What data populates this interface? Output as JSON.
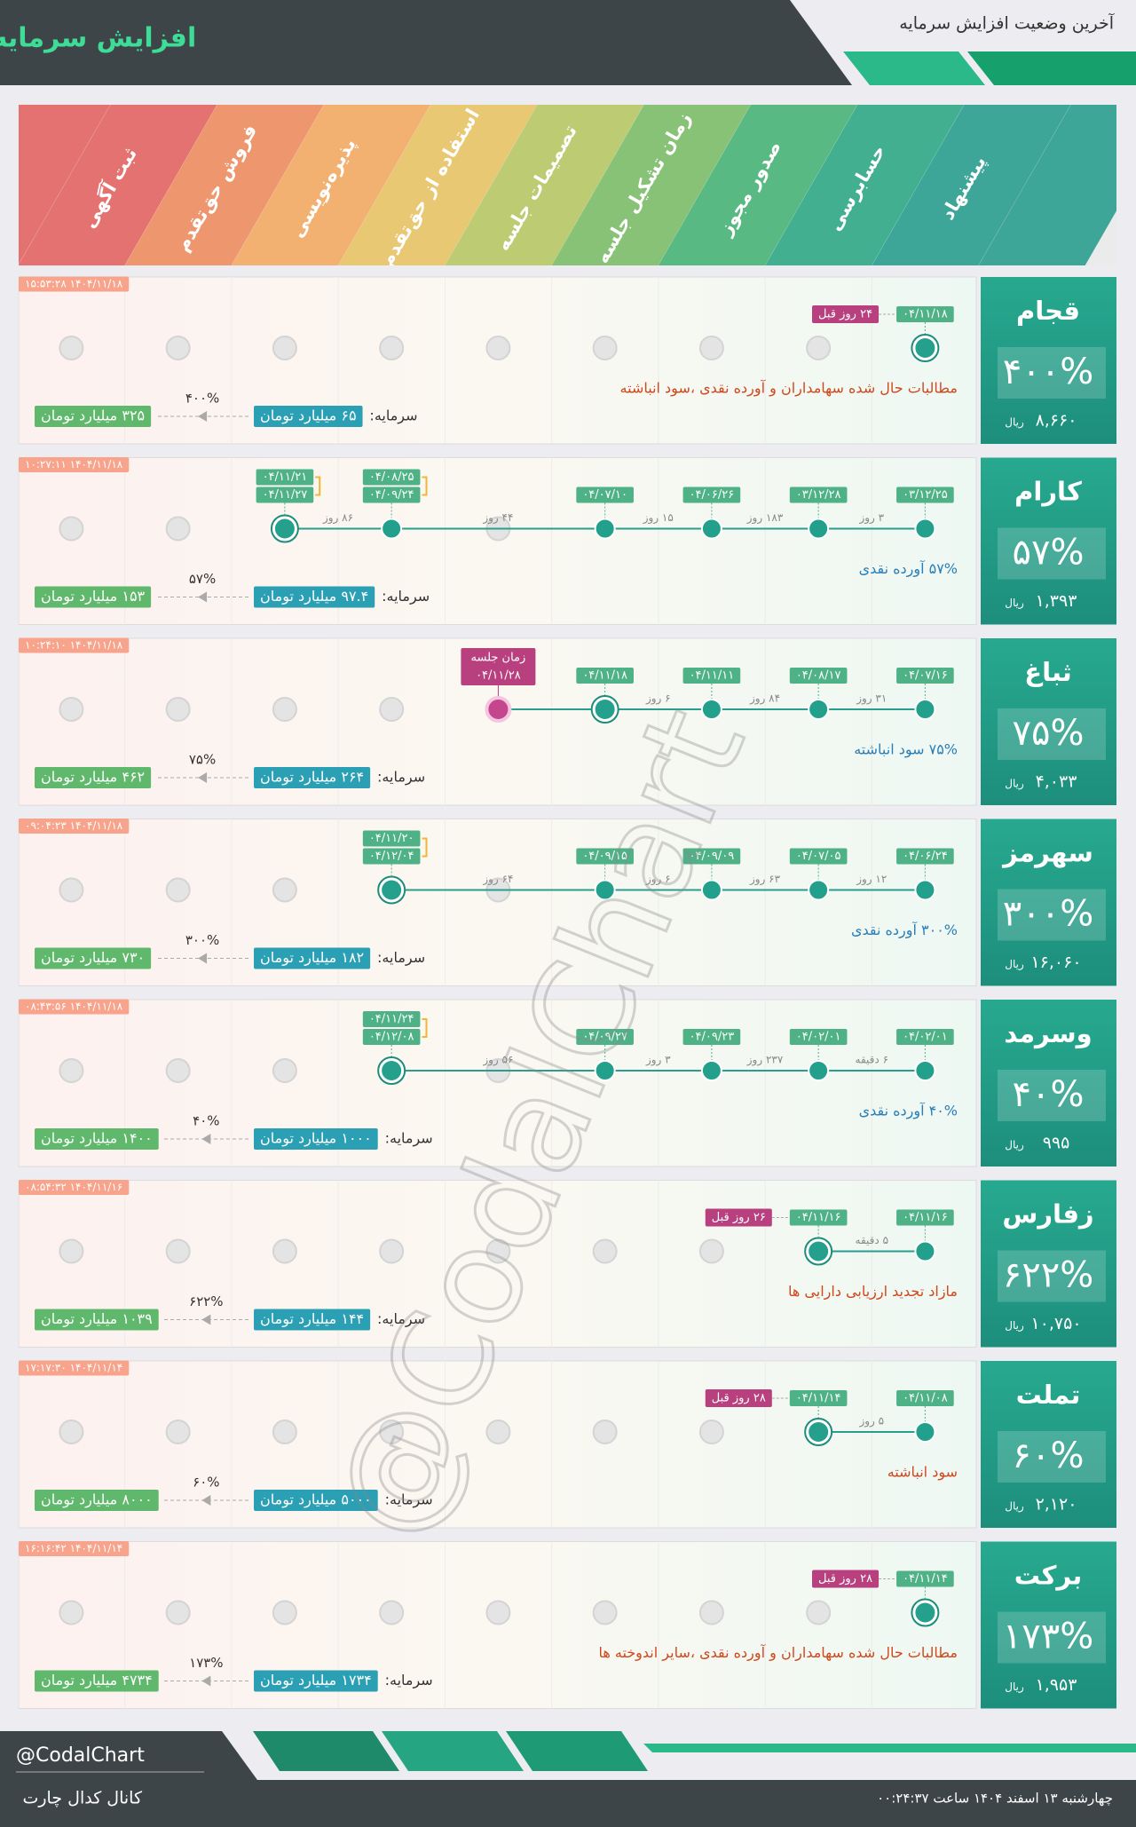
{
  "header": {
    "title": "افزایش سرمایه",
    "subtitle": "آخرین وضعیت افزایش سرمایه"
  },
  "stages": [
    "پیشنهاد",
    "حسابرسی",
    "صدور مجوز",
    "زمان تشکیل جلسه",
    "تصمیمات جلسه",
    "استفاده از حق‌تقدم",
    "پذیره‌نویسی",
    "فروش حق‌تقدم",
    "ثبت آگهی"
  ],
  "rows": [
    {
      "name": "قجام",
      "percent": "۴۰۰%",
      "price": "۸,۶۶۰",
      "unit": "ریال",
      "time": "۱۴۰۴/۱۱/۱۸ ۱۵:۵۳:۲۸",
      "desc": "مطالبات حال شده سهامداران و آورده نقدی ،سود انباشته",
      "desc_color": "red",
      "capital_label": "سرمایه:",
      "capital": "۶۵ میلیارد تومان",
      "increase": "۴۰۰%",
      "new_capital": "۳۲۵ میلیارد تومان",
      "nodes": [
        {
          "stage": 0,
          "dates": [
            "۰۴/۱۱/۱۸"
          ],
          "state": "active",
          "ago": "۲۴ روز قبل"
        }
      ]
    },
    {
      "name": "کارام",
      "percent": "۵۷%",
      "price": "۱,۳۹۳",
      "unit": "ریال",
      "time": "۱۴۰۴/۱۱/۱۸ ۱۰:۲۷:۱۱",
      "desc": "۵۷% آورده نقدی",
      "desc_color": "blue",
      "capital_label": "سرمایه:",
      "capital": "۹۷.۴ میلیارد تومان",
      "increase": "۵۷%",
      "new_capital": "۱۵۳ میلیارد تومان",
      "nodes": [
        {
          "stage": 0,
          "dates": [
            "۰۳/۱۲/۲۵"
          ],
          "state": "done"
        },
        {
          "stage": 1,
          "dates": [
            "۰۳/۱۲/۲۸"
          ],
          "state": "done",
          "gap": "۳ روز"
        },
        {
          "stage": 2,
          "dates": [
            "۰۴/۰۶/۲۶"
          ],
          "state": "done",
          "gap": "۱۸۳ روز"
        },
        {
          "stage": 3,
          "dates": [
            "۰۴/۰۷/۱۰"
          ],
          "state": "done",
          "gap": "۱۵ روز"
        },
        {
          "stage": 5,
          "dates": [
            "۰۴/۰۸/۲۵",
            "۰۴/۰۹/۲۴"
          ],
          "state": "done",
          "gap": "۴۴ روز"
        },
        {
          "stage": 6,
          "dates": [
            "۰۴/۱۱/۲۱",
            "۰۴/۱۱/۲۷"
          ],
          "state": "active",
          "gap": "۸۶ روز"
        }
      ]
    },
    {
      "name": "ثباغ",
      "percent": "۷۵%",
      "price": "۴,۰۳۳",
      "unit": "ریال",
      "time": "۱۴۰۴/۱۱/۱۸ ۱۰:۲۴:۱۰",
      "desc": "۷۵% سود انباشته",
      "desc_color": "blue",
      "capital_label": "سرمایه:",
      "capital": "۲۶۴ میلیارد تومان",
      "increase": "۷۵%",
      "new_capital": "۴۶۲ میلیارد تومان",
      "nodes": [
        {
          "stage": 0,
          "dates": [
            "۰۴/۰۷/۱۶"
          ],
          "state": "done"
        },
        {
          "stage": 1,
          "dates": [
            "۰۴/۰۸/۱۷"
          ],
          "state": "done",
          "gap": "۳۱ روز"
        },
        {
          "stage": 2,
          "dates": [
            "۰۴/۱۱/۱۱"
          ],
          "state": "done",
          "gap": "۸۴ روز"
        },
        {
          "stage": 3,
          "dates": [
            "۰۴/۱۱/۱۸"
          ],
          "state": "active",
          "gap": "۶ روز"
        },
        {
          "stage": 4,
          "dates": [
            "۰۴/۱۱/۲۸"
          ],
          "state": "meeting",
          "label": "زمان جلسه"
        }
      ]
    },
    {
      "name": "سهرمز",
      "percent": "۳۰۰%",
      "price": "۱۶,۰۶۰",
      "unit": "ریال",
      "time": "۱۴۰۴/۱۱/۱۸ ۰۹:۰۴:۲۳",
      "desc": "۳۰۰% آورده نقدی",
      "desc_color": "blue",
      "capital_label": "سرمایه:",
      "capital": "۱۸۲ میلیارد تومان",
      "increase": "۳۰۰%",
      "new_capital": "۷۳۰ میلیارد تومان",
      "nodes": [
        {
          "stage": 0,
          "dates": [
            "۰۴/۰۶/۲۴"
          ],
          "state": "done"
        },
        {
          "stage": 1,
          "dates": [
            "۰۴/۰۷/۰۵"
          ],
          "state": "done",
          "gap": "۱۲ روز"
        },
        {
          "stage": 2,
          "dates": [
            "۰۴/۰۹/۰۹"
          ],
          "state": "done",
          "gap": "۶۳ روز"
        },
        {
          "stage": 3,
          "dates": [
            "۰۴/۰۹/۱۵"
          ],
          "state": "done",
          "gap": "۶ روز"
        },
        {
          "stage": 5,
          "dates": [
            "۰۴/۱۱/۲۰",
            "۰۴/۱۲/۰۴"
          ],
          "state": "active",
          "gap": "۶۴ روز"
        }
      ]
    },
    {
      "name": "وسرمد",
      "percent": "۴۰%",
      "price": "۹۹۵",
      "unit": "ریال",
      "time": "۱۴۰۴/۱۱/۱۸ ۰۸:۴۳:۵۶",
      "desc": "۴۰% آورده نقدی",
      "desc_color": "blue",
      "capital_label": "سرمایه:",
      "capital": "۱۰۰۰ میلیارد تومان",
      "increase": "۴۰%",
      "new_capital": "۱۴۰۰ میلیارد تومان",
      "nodes": [
        {
          "stage": 0,
          "dates": [
            "۰۴/۰۲/۰۱"
          ],
          "state": "done"
        },
        {
          "stage": 1,
          "dates": [
            "۰۴/۰۲/۰۱"
          ],
          "state": "done",
          "gap": "۶ دقیقه"
        },
        {
          "stage": 2,
          "dates": [
            "۰۴/۰۹/۲۳"
          ],
          "state": "done",
          "gap": "۲۳۷ روز"
        },
        {
          "stage": 3,
          "dates": [
            "۰۴/۰۹/۲۷"
          ],
          "state": "done",
          "gap": "۳ روز"
        },
        {
          "stage": 5,
          "dates": [
            "۰۴/۱۱/۲۴",
            "۰۴/۱۲/۰۸"
          ],
          "state": "active",
          "gap": "۵۶ روز"
        }
      ]
    },
    {
      "name": "زفارس",
      "percent": "۶۲۲%",
      "price": "۱۰,۷۵۰",
      "unit": "ریال",
      "time": "۱۴۰۴/۱۱/۱۶ ۰۸:۵۴:۳۲",
      "desc": "مازاد تجدید ارزیابی دارایی ها",
      "desc_color": "red",
      "capital_label": "سرمایه:",
      "capital": "۱۴۴ میلیارد تومان",
      "increase": "۶۲۲%",
      "new_capital": "۱۰۳۹ میلیارد تومان",
      "nodes": [
        {
          "stage": 0,
          "dates": [
            "۰۴/۱۱/۱۶"
          ],
          "state": "done"
        },
        {
          "stage": 1,
          "dates": [
            "۰۴/۱۱/۱۶"
          ],
          "state": "active",
          "gap": "۵ دقیقه",
          "ago": "۲۶ روز قبل"
        }
      ]
    },
    {
      "name": "تملت",
      "percent": "۶۰%",
      "price": "۲,۱۲۰",
      "unit": "ریال",
      "time": "۱۴۰۴/۱۱/۱۴ ۱۷:۱۷:۳۰",
      "desc": "سود انباشته",
      "desc_color": "red",
      "capital_label": "سرمایه:",
      "capital": "۵۰۰۰ میلیارد تومان",
      "increase": "۶۰%",
      "new_capital": "۸۰۰۰ میلیارد تومان",
      "nodes": [
        {
          "stage": 0,
          "dates": [
            "۰۴/۱۱/۰۸"
          ],
          "state": "done"
        },
        {
          "stage": 1,
          "dates": [
            "۰۴/۱۱/۱۴"
          ],
          "state": "active",
          "gap": "۵ روز",
          "ago": "۲۸ روز قبل"
        }
      ]
    },
    {
      "name": "برکت",
      "percent": "۱۷۳%",
      "price": "۱,۹۵۳",
      "unit": "ریال",
      "time": "۱۴۰۴/۱۱/۱۴ ۱۶:۱۶:۴۲",
      "desc": "مطالبات حال شده سهامداران و آورده نقدی ،سایر اندوخته ها",
      "desc_color": "red",
      "capital_label": "سرمایه:",
      "capital": "۱۷۳۴ میلیارد تومان",
      "increase": "۱۷۳%",
      "new_capital": "۴۷۳۴ میلیارد تومان",
      "nodes": [
        {
          "stage": 0,
          "dates": [
            "۰۴/۱۱/۱۴"
          ],
          "state": "active",
          "ago": "۲۸ روز قبل"
        }
      ]
    }
  ],
  "watermark": "@CodalChart",
  "footer": {
    "handle": "@CodalChart",
    "channel": "کانال کدال چارت",
    "date": "چهارشنبه ۱۳ اسفند ۱۴۰۴ ساعت ۰۰:۲۴:۳۷"
  }
}
